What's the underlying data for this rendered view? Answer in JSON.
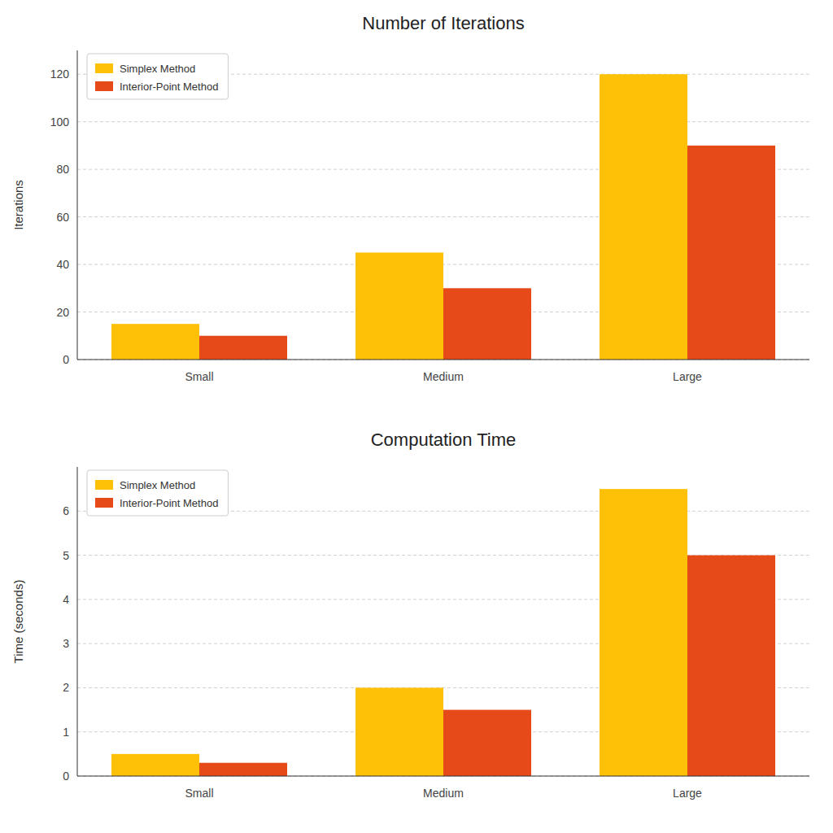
{
  "chart_data": [
    {
      "type": "bar",
      "title": "Number of Iterations",
      "y_label": "Iterations",
      "categories": [
        "Small",
        "Medium",
        "Large"
      ],
      "series": [
        {
          "name": "Simplex Method",
          "color": "#FFC107",
          "values": [
            15,
            45,
            120
          ]
        },
        {
          "name": "Interior-Point Method",
          "color": "#E64A19",
          "values": [
            10,
            30,
            90
          ]
        }
      ],
      "ylim": [
        0,
        130
      ],
      "yticks": [
        0,
        20,
        40,
        60,
        80,
        100,
        120
      ],
      "grid": true,
      "legend": "upper-left"
    },
    {
      "type": "bar",
      "title": "Computation Time",
      "y_label": "Time (seconds)",
      "categories": [
        "Small",
        "Medium",
        "Large"
      ],
      "series": [
        {
          "name": "Simplex Method",
          "color": "#FFC107",
          "values": [
            0.5,
            2.0,
            6.5
          ]
        },
        {
          "name": "Interior-Point Method",
          "color": "#E64A19",
          "values": [
            0.3,
            1.5,
            5.0
          ]
        }
      ],
      "ylim": [
        0,
        7.0
      ],
      "yticks": [
        0,
        1,
        2,
        3,
        4,
        5,
        6
      ],
      "grid": true,
      "legend": "upper-left"
    }
  ]
}
